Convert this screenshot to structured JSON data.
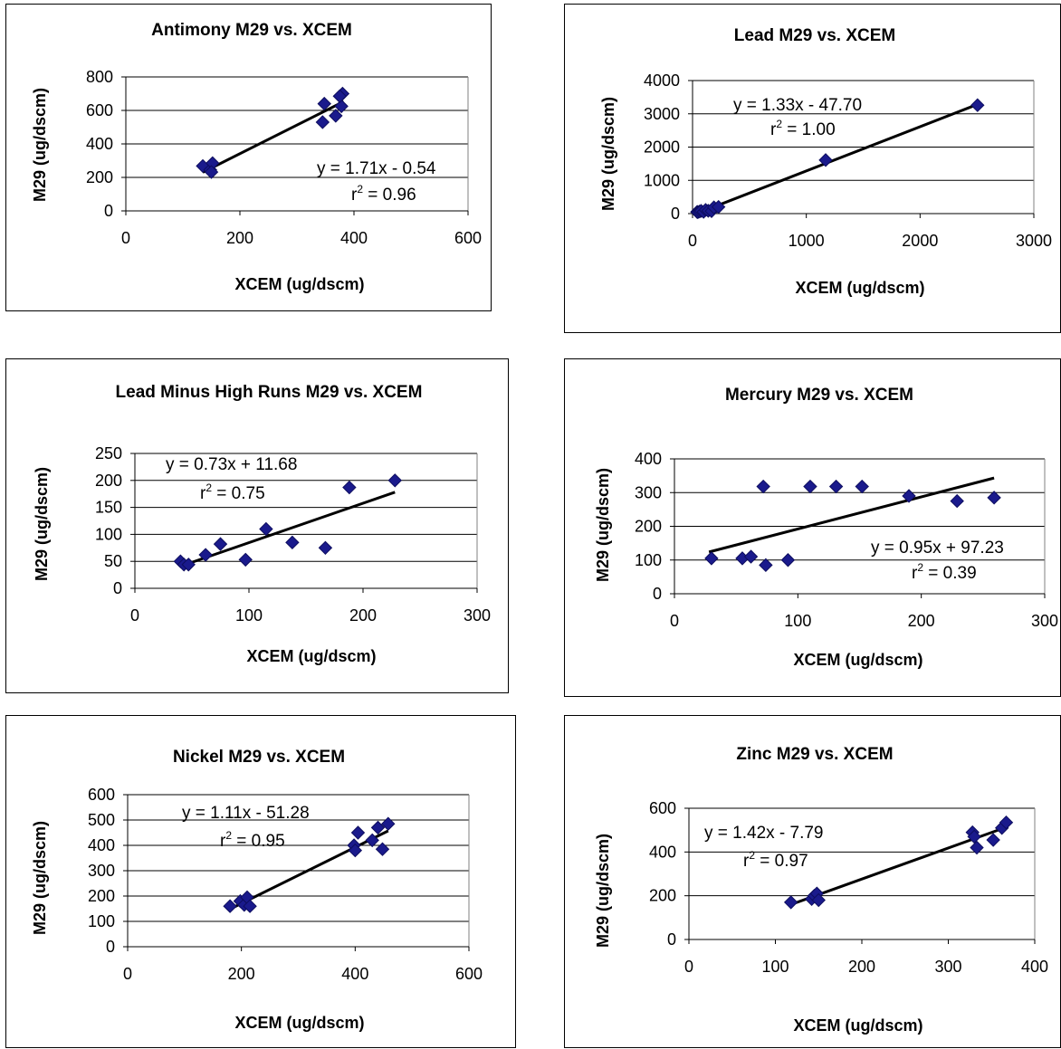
{
  "chart_data": [
    {
      "type": "scatter",
      "title": "Antimony M29 vs. XCEM",
      "xlabel": "XCEM (ug/dscm)",
      "ylabel": "M29 (ug/dscm)",
      "xlim": [
        0,
        600
      ],
      "ylim": [
        0,
        800
      ],
      "xticks": [
        "0",
        "200",
        "400",
        "600"
      ],
      "yticks": [
        "0",
        "200",
        "400",
        "600",
        "800"
      ],
      "grid": "horizontal",
      "series": [
        {
          "points": [
            [
              135,
              268
            ],
            [
              148,
              245
            ],
            [
              152,
              285
            ],
            [
              150,
              232
            ],
            [
              345,
              530
            ],
            [
              348,
              640
            ],
            [
              368,
              568
            ],
            [
              378,
              625
            ],
            [
              380,
              700
            ],
            [
              375,
              685
            ]
          ]
        }
      ],
      "trendline": {
        "slope": 1.71,
        "intercept": -0.54,
        "x_range": [
          135,
          382
        ]
      },
      "annotations": {
        "equation": "y = 1.71x - 0.54",
        "r2_prefix": "r",
        "r2_sup": "2",
        "r2_value": " = 0.96"
      }
    },
    {
      "type": "scatter",
      "title": "Lead M29 vs. XCEM",
      "xlabel": "XCEM (ug/dscm)",
      "ylabel": "M29 (ug/dscm)",
      "xlim": [
        0,
        3000
      ],
      "ylim": [
        0,
        4000
      ],
      "xticks": [
        "0",
        "1000",
        "2000",
        "3000"
      ],
      "yticks": [
        "0",
        "1000",
        "2000",
        "3000",
        "4000"
      ],
      "grid": "horizontal",
      "series": [
        {
          "points": [
            [
              40,
              50
            ],
            [
              47,
              44
            ],
            [
              62,
              62
            ],
            [
              75,
              82
            ],
            [
              97,
              53
            ],
            [
              115,
              110
            ],
            [
              138,
              85
            ],
            [
              167,
              75
            ],
            [
              188,
              187
            ],
            [
              228,
              200
            ],
            [
              1170,
              1610
            ],
            [
              2505,
              3260
            ]
          ]
        }
      ],
      "trendline": {
        "slope": 1.33,
        "intercept": -47.7,
        "x_range": [
          40,
          2510
        ]
      },
      "annotations": {
        "equation": "y = 1.33x - 47.70",
        "r2_prefix": "r",
        "r2_sup": "2",
        "r2_value": " = 1.00"
      }
    },
    {
      "type": "scatter",
      "title": "Lead Minus High Runs M29 vs. XCEM",
      "xlabel": "XCEM (ug/dscm)",
      "ylabel": "M29 (ug/dscm)",
      "xlim": [
        0,
        300
      ],
      "ylim": [
        0,
        250
      ],
      "xticks": [
        "0",
        "100",
        "200",
        "300"
      ],
      "yticks": [
        "0",
        "50",
        "100",
        "150",
        "200",
        "250"
      ],
      "grid": "horizontal",
      "series": [
        {
          "points": [
            [
              40,
              50
            ],
            [
              43,
              44
            ],
            [
              47,
              44
            ],
            [
              62,
              62
            ],
            [
              75,
              82
            ],
            [
              97,
              53
            ],
            [
              115,
              110
            ],
            [
              138,
              85
            ],
            [
              167,
              75
            ],
            [
              188,
              187
            ],
            [
              228,
              200
            ]
          ]
        }
      ],
      "trendline": {
        "slope": 0.73,
        "intercept": 11.68,
        "x_range": [
          40,
          228
        ]
      },
      "annotations": {
        "equation": "y = 0.73x + 11.68",
        "r2_prefix": "r",
        "r2_sup": "2",
        "r2_value": " = 0.75"
      }
    },
    {
      "type": "scatter",
      "title": "Mercury M29 vs. XCEM",
      "xlabel": "XCEM (ug/dscm)",
      "ylabel": "M29 (ug/dscm)",
      "xlim": [
        0,
        300
      ],
      "ylim": [
        0,
        400
      ],
      "xticks": [
        "0",
        "100",
        "200",
        "300"
      ],
      "yticks": [
        "0",
        "100",
        "200",
        "300",
        "400"
      ],
      "grid": "horizontal",
      "series": [
        {
          "points": [
            [
              30,
              105
            ],
            [
              55,
              105
            ],
            [
              62,
              110
            ],
            [
              72,
              318
            ],
            [
              74,
              85
            ],
            [
              92,
              100
            ],
            [
              110,
              318
            ],
            [
              131,
              318
            ],
            [
              152,
              318
            ],
            [
              190,
              290
            ],
            [
              229,
              275
            ],
            [
              259,
              285
            ]
          ]
        }
      ],
      "trendline": {
        "slope": 0.95,
        "intercept": 97.23,
        "x_range": [
          28,
          259
        ]
      },
      "annotations": {
        "equation": "y = 0.95x + 97.23",
        "r2_prefix": "r",
        "r2_sup": "2",
        "r2_value": " = 0.39"
      }
    },
    {
      "type": "scatter",
      "title": "Nickel M29 vs. XCEM",
      "xlabel": "XCEM (ug/dscm)",
      "ylabel": "M29 (ug/dscm)",
      "xlim": [
        0,
        600
      ],
      "ylim": [
        0,
        600
      ],
      "xticks": [
        "0",
        "200",
        "400",
        "600"
      ],
      "yticks": [
        "0",
        "100",
        "200",
        "300",
        "400",
        "500",
        "600"
      ],
      "grid": "horizontal",
      "series": [
        {
          "points": [
            [
              180,
              160
            ],
            [
              198,
              180
            ],
            [
              205,
              165
            ],
            [
              210,
              195
            ],
            [
              215,
              160
            ],
            [
              398,
              400
            ],
            [
              400,
              380
            ],
            [
              405,
              450
            ],
            [
              430,
              420
            ],
            [
              440,
              470
            ],
            [
              448,
              385
            ],
            [
              458,
              485
            ]
          ]
        }
      ],
      "trendline": {
        "slope": 1.11,
        "intercept": -51.28,
        "x_range": [
          180,
          458
        ]
      },
      "annotations": {
        "equation": "y = 1.11x - 51.28",
        "r2_prefix": "r",
        "r2_sup": "2",
        "r2_value": " = 0.95"
      }
    },
    {
      "type": "scatter",
      "title": "Zinc M29 vs. XCEM",
      "xlabel": "XCEM (ug/dscm)",
      "ylabel": "M29 (ug/dscm)",
      "xlim": [
        0,
        400
      ],
      "ylim": [
        0,
        600
      ],
      "xticks": [
        "0",
        "100",
        "200",
        "300",
        "400"
      ],
      "yticks": [
        "0",
        "200",
        "400",
        "600"
      ],
      "grid": "horizontal",
      "series": [
        {
          "points": [
            [
              118,
              170
            ],
            [
              142,
              185
            ],
            [
              145,
              200
            ],
            [
              148,
              210
            ],
            [
              150,
              180
            ],
            [
              328,
              490
            ],
            [
              330,
              470
            ],
            [
              333,
              420
            ],
            [
              352,
              455
            ],
            [
              362,
              510
            ],
            [
              367,
              535
            ]
          ]
        }
      ],
      "trendline": {
        "slope": 1.42,
        "intercept": -7.79,
        "x_range": [
          118,
          365
        ]
      },
      "annotations": {
        "equation": "y = 1.42x - 7.79",
        "r2_prefix": "r",
        "r2_sup": "2",
        "r2_value": " = 0.97"
      }
    }
  ],
  "colors": {
    "marker": "#1a1a8c",
    "trendline": "#000000",
    "gridline": "#000000"
  }
}
